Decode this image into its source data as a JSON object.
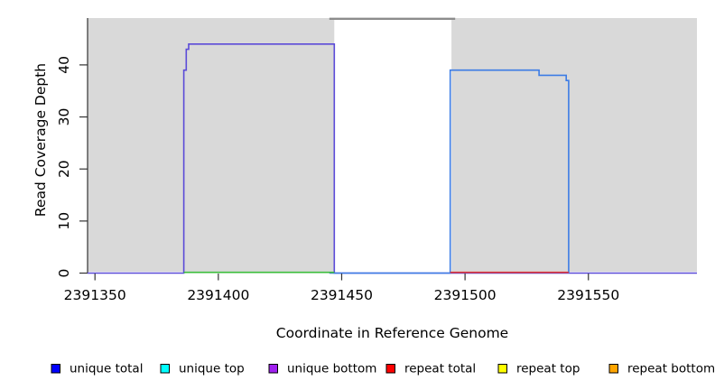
{
  "chart_data": {
    "type": "line",
    "title": "",
    "xlabel": "Coordinate in Reference Genome",
    "ylabel": "Read Coverage Depth",
    "xlim": [
      2391347,
      2391594
    ],
    "ylim": [
      0,
      49
    ],
    "x_ticks": [
      "2391350",
      "2391400",
      "2391450",
      "2391500",
      "2391550"
    ],
    "x_tick_values": [
      2391350,
      2391400,
      2391450,
      2391500,
      2391550
    ],
    "y_ticks": [
      "0",
      "10",
      "20",
      "30",
      "40"
    ],
    "y_tick_values": [
      0,
      10,
      20,
      30,
      40
    ],
    "grid": "off",
    "legend_position": "bottom",
    "colors": {
      "plot_background_shaded": "#d9d9d9",
      "gap_top_bar": "#8c8c8c",
      "axis": "#333333",
      "unique_bottom_line": "#5b4bd8",
      "unique_total_line": "#3c7ce5",
      "green_baseline": "#3dbd3d",
      "red_baseline": "#e03535"
    },
    "background_regions": [
      {
        "name": "shaded-left",
        "x0": 2391347,
        "x1": 2391447
      },
      {
        "name": "shaded-right",
        "x0": 2391494.5,
        "x1": 2391594
      }
    ],
    "gap_region": {
      "name": "uncovered-gap",
      "x0": 2391447,
      "x1": 2391494.5,
      "top_bar_x0": 2391445,
      "top_bar_x1": 2391496
    },
    "series": [
      {
        "name": "unique-coverage-left-purple",
        "color": "#5b4bd8",
        "points": [
          [
            2391347,
            0
          ],
          [
            2391386,
            0
          ],
          [
            2391386,
            39
          ],
          [
            2391387,
            39
          ],
          [
            2391387,
            43
          ],
          [
            2391388,
            43
          ],
          [
            2391388,
            44
          ],
          [
            2391447,
            44
          ],
          [
            2391447,
            0
          ],
          [
            2391594,
            0
          ]
        ]
      },
      {
        "name": "unique-coverage-right-blue",
        "color": "#3c7ce5",
        "points": [
          [
            2391445,
            0
          ],
          [
            2391494,
            0
          ],
          [
            2391494,
            39
          ],
          [
            2391530,
            39
          ],
          [
            2391530,
            38
          ],
          [
            2391541,
            38
          ],
          [
            2391541,
            37
          ],
          [
            2391542,
            37
          ],
          [
            2391542,
            0
          ]
        ]
      },
      {
        "name": "green-baseline-segment",
        "color": "#3dbd3d",
        "points": [
          [
            2391386,
            0
          ],
          [
            2391447,
            0
          ]
        ]
      },
      {
        "name": "red-baseline-segment",
        "color": "#e03535",
        "points": [
          [
            2391494,
            0
          ],
          [
            2391542,
            0
          ]
        ]
      }
    ],
    "legend": [
      {
        "label": "unique total",
        "color": "#0000ff"
      },
      {
        "label": "unique top",
        "color": "#00ffff"
      },
      {
        "label": "unique bottom",
        "color": "#a020f0"
      },
      {
        "label": "repeat total",
        "color": "#ff0000"
      },
      {
        "label": "repeat top",
        "color": "#ffff00"
      },
      {
        "label": "repeat bottom",
        "color": "#ffa500"
      }
    ]
  }
}
